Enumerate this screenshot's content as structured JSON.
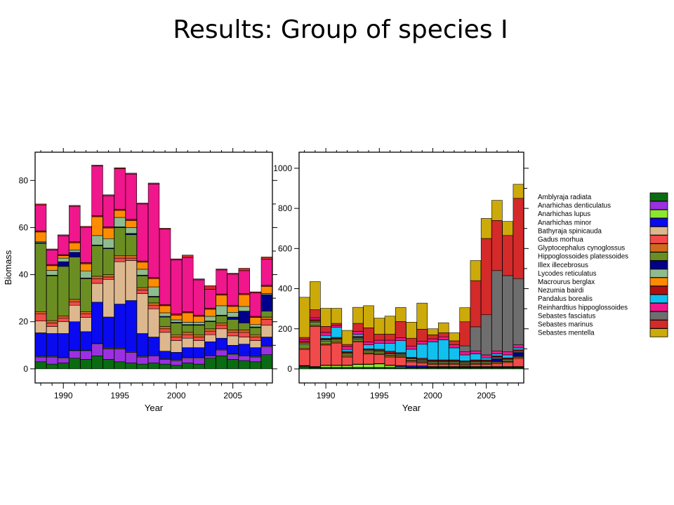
{
  "slide": {
    "title": "Results: Group of species I"
  },
  "species": [
    {
      "name": "Amblyraja radiata",
      "color": "#0a6b12"
    },
    {
      "name": "Anarhichas denticulatus",
      "color": "#9b30e0"
    },
    {
      "name": "Anarhichas lupus",
      "color": "#8ee62e"
    },
    {
      "name": "Anarhichas minor",
      "color": "#0a0af0"
    },
    {
      "name": "Bathyraja spinicauda",
      "color": "#ddb88e"
    },
    {
      "name": "Gadus morhua",
      "color": "#f24a4a"
    },
    {
      "name": "Glyptocephalus cynoglossus",
      "color": "#d2691e"
    },
    {
      "name": "Hippoglossoides platessoides",
      "color": "#6b8e23"
    },
    {
      "name": "Illex illecebrosus",
      "color": "#00008b"
    },
    {
      "name": "Lycodes reticulatus",
      "color": "#8fbc8f"
    },
    {
      "name": "Macrourus berglax",
      "color": "#ff8c00"
    },
    {
      "name": "Nezumia bairdi",
      "color": "#b01010"
    },
    {
      "name": "Pandalus borealis",
      "color": "#12c0f0"
    },
    {
      "name": "Reinhardtius hippoglossoides",
      "color": "#f0168c"
    },
    {
      "name": "Sebastes fasciatus",
      "color": "#6e6e6e"
    },
    {
      "name": "Sebastes marinus",
      "color": "#d42a2a"
    },
    {
      "name": "Sebastes mentella",
      "color": "#ccaa0a"
    }
  ],
  "chart_data": [
    {
      "id": "left",
      "type": "bar",
      "stacked": true,
      "ylabel": "Biomass",
      "xlabel": "Year",
      "ylim": [
        -6,
        92
      ],
      "yticks": [
        0,
        20,
        40,
        60,
        80
      ],
      "xlim": [
        1987.5,
        2008.5
      ],
      "xticks_major": [
        1990,
        1995,
        2000,
        2005
      ],
      "categories": [
        1988,
        1989,
        1990,
        1991,
        1992,
        1993,
        1994,
        1995,
        1996,
        1997,
        1998,
        1999,
        2000,
        2001,
        2002,
        2003,
        2004,
        2005,
        2006,
        2007,
        2008
      ],
      "series": [
        {
          "name": "Amblyraja radiata",
          "values": [
            3,
            2,
            2.5,
            4.5,
            4,
            5.5,
            4,
            3,
            2.5,
            2,
            2.5,
            2,
            1.5,
            2.5,
            2,
            4.5,
            5.5,
            4,
            3.5,
            3,
            6
          ]
        },
        {
          "name": "Anarhichas denticulatus",
          "values": [
            2,
            3,
            2,
            3,
            3.5,
            5,
            4.5,
            5.5,
            4.5,
            3,
            3,
            2,
            2,
            2,
            2.5,
            1,
            2.5,
            2,
            2,
            2,
            3.5
          ]
        },
        {
          "name": "Anarhichas lupus",
          "values": [
            0.3,
            0.3,
            0.3,
            0.3,
            0.3,
            0.3,
            0.3,
            0.3,
            0.3,
            0.3,
            0.3,
            0.3,
            0.3,
            0.3,
            0.3,
            0.3,
            0.3,
            0.3,
            0.3,
            0.3,
            0.3
          ]
        },
        {
          "name": "Anarhichas minor",
          "values": [
            10,
            9.7,
            10.2,
            12.2,
            8,
            17.5,
            13.2,
            18.7,
            21.7,
            9.7,
            7.7,
            3.2,
            3.2,
            4.2,
            4.2,
            5.7,
            4.7,
            3.7,
            4.7,
            3.7,
            3.7
          ]
        },
        {
          "name": "Bathyraja spinicauda",
          "values": [
            5,
            3,
            5,
            7,
            6,
            8,
            16,
            18,
            17,
            17,
            12,
            8,
            5,
            4,
            3,
            3,
            4,
            4,
            3,
            3,
            5
          ]
        },
        {
          "name": "Gadus morhua",
          "values": [
            3,
            1.5,
            1.5,
            1.5,
            1.5,
            2,
            1,
            1.5,
            1,
            1.5,
            1.5,
            1.5,
            1.5,
            1.5,
            1.5,
            1.5,
            1.5,
            1.5,
            2,
            1.5,
            2.5
          ]
        },
        {
          "name": "Glyptocephalus cynoglossus",
          "values": [
            1,
            1,
            1,
            1,
            1,
            1,
            1,
            1,
            1,
            1,
            1,
            1,
            1,
            1,
            1,
            1,
            1,
            1,
            1,
            1,
            1
          ]
        },
        {
          "name": "Hippoglossoides platessoides",
          "values": [
            29,
            19,
            21,
            18,
            14,
            13,
            11,
            12,
            9,
            5,
            2.5,
            4,
            5,
            3,
            4,
            3,
            3,
            4.5,
            3,
            3,
            2.5
          ]
        },
        {
          "name": "Illex illecebrosus",
          "values": [
            0.3,
            0.3,
            2,
            2,
            0.3,
            0.3,
            0.3,
            0.3,
            0.5,
            0.3,
            0.3,
            0.3,
            0.3,
            0.3,
            0.3,
            0.3,
            0.3,
            1,
            5,
            0.3,
            7
          ]
        },
        {
          "name": "Lycodes reticulatus",
          "values": [
            0.5,
            2,
            1.5,
            1,
            3,
            4,
            4,
            4,
            2.5,
            2.5,
            4,
            1.5,
            1,
            1,
            1,
            2,
            4,
            2,
            2,
            1,
            0.5
          ]
        },
        {
          "name": "Macrourus berglax",
          "values": [
            4,
            2,
            1,
            3,
            3,
            8,
            4.5,
            3,
            3,
            3,
            3.5,
            3,
            2,
            4,
            2.5,
            3,
            4.5,
            2.5,
            5,
            3,
            3
          ]
        },
        {
          "name": "Nezumia bairdi",
          "values": [
            0.5,
            0.5,
            0.5,
            0.5,
            0.5,
            0.5,
            0.5,
            0.5,
            0.5,
            0.5,
            0.5,
            0.5,
            0.5,
            0.5,
            0.5,
            0.5,
            0.5,
            0.5,
            0.5,
            0.5,
            0.5
          ]
        },
        {
          "name": "Pandalus borealis",
          "values": [
            0,
            0,
            0,
            0,
            0,
            0,
            0,
            0,
            0,
            0,
            0,
            0,
            0,
            0,
            0,
            0,
            0,
            0,
            0,
            0,
            0
          ]
        },
        {
          "name": "Reinhardtius hippoglossoides",
          "values": [
            11,
            6.2,
            8,
            15,
            15,
            21,
            13.2,
            17.2,
            19.2,
            24.2,
            39.7,
            32,
            23,
            23,
            15,
            8,
            10.2,
            13.2,
            9.7,
            10,
            11
          ]
        },
        {
          "name": "Sebastes fasciatus",
          "values": [
            0,
            0,
            0,
            0,
            0,
            0,
            0,
            0,
            0,
            0,
            0,
            0,
            0,
            0,
            0,
            0,
            0,
            0,
            0,
            0,
            0
          ]
        },
        {
          "name": "Sebastes marinus",
          "values": [
            0.4,
            0.4,
            0.4,
            0.4,
            0.4,
            0.4,
            0.4,
            0.4,
            0.4,
            0.4,
            0.4,
            0.4,
            0.4,
            1,
            0.4,
            1.5,
            0.4,
            0.4,
            1,
            0.4,
            1
          ]
        },
        {
          "name": "Sebastes mentella",
          "values": [
            0,
            0,
            0,
            0,
            0,
            0,
            0,
            0,
            0,
            0,
            0,
            0,
            0,
            0,
            0,
            0,
            0,
            0,
            0,
            0,
            0
          ]
        }
      ]
    },
    {
      "id": "right",
      "type": "bar",
      "stacked": true,
      "ylabel": "",
      "xlabel": "Year",
      "ylim": [
        -70,
        1080
      ],
      "yticks": [
        0,
        200,
        400,
        600,
        800,
        1000
      ],
      "xlim": [
        1987.5,
        2008.5
      ],
      "xticks_major": [
        1990,
        1995,
        2000,
        2005
      ],
      "categories": [
        1988,
        1989,
        1990,
        1991,
        1992,
        1993,
        1994,
        1995,
        1996,
        1997,
        1998,
        1999,
        2000,
        2001,
        2002,
        2003,
        2004,
        2005,
        2006,
        2007,
        2008
      ],
      "series": [
        {
          "name": "Amblyraja radiata",
          "values": [
            10,
            5,
            5,
            5,
            5,
            5,
            5,
            5,
            5,
            5,
            5,
            5,
            5,
            5,
            5,
            5,
            5,
            5,
            5,
            5,
            5
          ]
        },
        {
          "name": "Anarhichas denticulatus",
          "values": [
            2,
            2,
            2,
            2,
            2,
            2,
            2,
            2,
            2,
            2,
            2,
            2,
            2,
            2,
            2,
            2,
            2,
            2,
            2,
            2,
            2
          ]
        },
        {
          "name": "Anarhichas lupus",
          "values": [
            3,
            3,
            10,
            10,
            10,
            15,
            15,
            18,
            10,
            5,
            3,
            3,
            3,
            3,
            3,
            3,
            3,
            3,
            3,
            3,
            3
          ]
        },
        {
          "name": "Anarhichas minor",
          "values": [
            2,
            2,
            2,
            2,
            2,
            2,
            2,
            2,
            2,
            5,
            5,
            5,
            2,
            2,
            2,
            2,
            2,
            2,
            2,
            2,
            2
          ]
        },
        {
          "name": "Bathyraja spinicauda",
          "values": [
            0,
            0,
            0,
            0,
            0,
            0,
            0,
            0,
            0,
            0,
            0,
            0,
            0,
            0,
            0,
            0,
            0,
            0,
            0,
            0,
            0
          ]
        },
        {
          "name": "Gadus morhua",
          "values": [
            80,
            200,
            100,
            110,
            40,
            110,
            50,
            45,
            40,
            40,
            20,
            15,
            10,
            10,
            10,
            5,
            10,
            10,
            15,
            20,
            40
          ]
        },
        {
          "name": "Glyptocephalus cynoglossus",
          "values": [
            5,
            5,
            5,
            5,
            5,
            5,
            5,
            5,
            5,
            5,
            5,
            5,
            5,
            5,
            5,
            5,
            5,
            5,
            5,
            5,
            5
          ]
        },
        {
          "name": "Hippoglossoides platessoides",
          "values": [
            20,
            15,
            15,
            10,
            10,
            10,
            8,
            8,
            6,
            6,
            5,
            5,
            5,
            5,
            5,
            5,
            5,
            5,
            5,
            5,
            5
          ]
        },
        {
          "name": "Illex illecebrosus",
          "values": [
            0,
            0,
            0,
            0,
            0,
            0,
            0,
            0,
            0,
            0,
            0,
            0,
            0,
            0,
            0,
            0,
            0,
            0,
            15,
            0,
            20
          ]
        },
        {
          "name": "Lycodes reticulatus",
          "values": [
            5,
            5,
            5,
            5,
            5,
            5,
            5,
            5,
            5,
            5,
            5,
            5,
            5,
            5,
            5,
            5,
            5,
            5,
            5,
            5,
            5
          ]
        },
        {
          "name": "Macrourus berglax",
          "values": [
            5,
            3,
            3,
            3,
            3,
            3,
            3,
            3,
            3,
            3,
            3,
            3,
            3,
            3,
            3,
            3,
            3,
            3,
            3,
            3,
            3
          ]
        },
        {
          "name": "Nezumia bairdi",
          "values": [
            5,
            5,
            5,
            5,
            5,
            5,
            5,
            5,
            10,
            5,
            5,
            5,
            5,
            5,
            5,
            5,
            5,
            5,
            5,
            5,
            5
          ]
        },
        {
          "name": "Pandalus borealis",
          "values": [
            0,
            0,
            15,
            50,
            10,
            10,
            20,
            30,
            40,
            60,
            40,
            70,
            90,
            100,
            60,
            30,
            30,
            10,
            10,
            15,
            10
          ]
        },
        {
          "name": "Reinhardtius hippoglossoides",
          "values": [
            10,
            10,
            15,
            10,
            15,
            15,
            15,
            15,
            15,
            15,
            15,
            15,
            15,
            15,
            15,
            15,
            15,
            15,
            15,
            15,
            15
          ]
        },
        {
          "name": "Sebastes fasciatus",
          "values": [
            0,
            0,
            0,
            0,
            0,
            0,
            0,
            0,
            0,
            0,
            0,
            0,
            0,
            0,
            0,
            30,
            120,
            200,
            400,
            380,
            330
          ]
        },
        {
          "name": "Sebastes marinus",
          "values": [
            10,
            40,
            30,
            10,
            10,
            40,
            70,
            30,
            30,
            80,
            40,
            60,
            20,
            20,
            20,
            120,
            230,
            380,
            250,
            200,
            400
          ]
        },
        {
          "name": "Sebastes mentella",
          "values": [
            200,
            140,
            90,
            75,
            70,
            80,
            110,
            80,
            90,
            70,
            80,
            130,
            30,
            50,
            40,
            70,
            100,
            100,
            100,
            70,
            70
          ]
        }
      ]
    }
  ]
}
